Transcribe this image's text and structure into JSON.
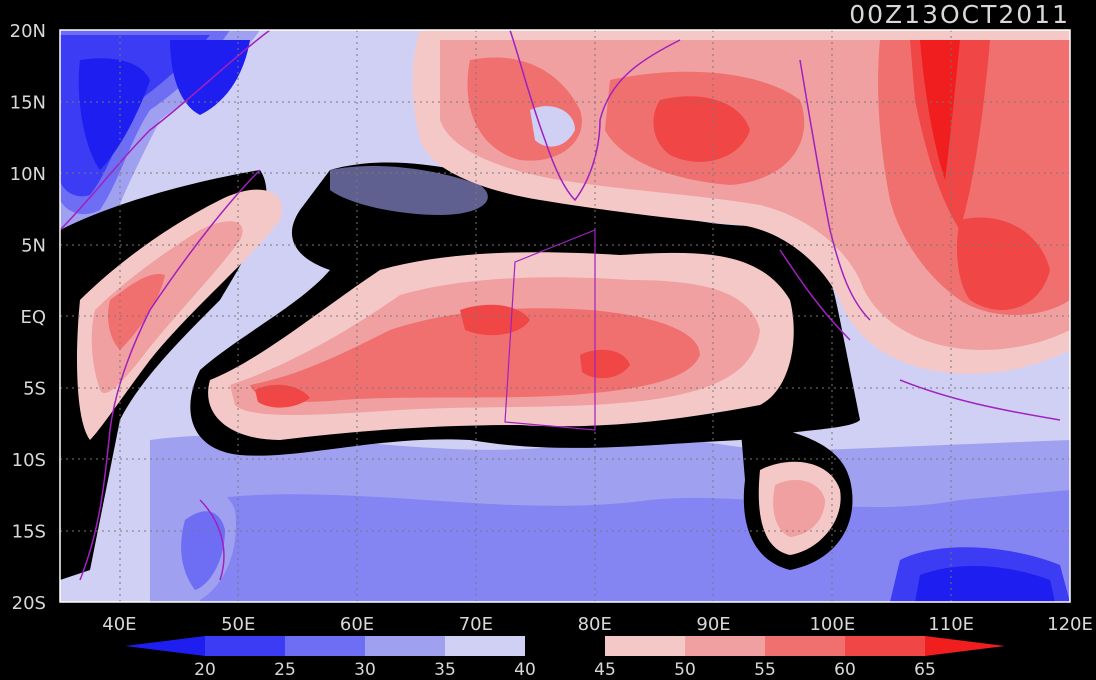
{
  "title": "00Z13OCT2011",
  "x_axis": {
    "tick_labels": [
      "40E",
      "50E",
      "60E",
      "70E",
      "80E",
      "90E",
      "100E",
      "110E",
      "120E"
    ],
    "lon_range": [
      35,
      120
    ]
  },
  "y_axis": {
    "tick_labels": [
      "20N",
      "15N",
      "10N",
      "5N",
      "EQ",
      "5S",
      "10S",
      "15S",
      "20S"
    ],
    "lat_range": [
      -20,
      20
    ]
  },
  "colorbar": {
    "labels": [
      "20",
      "25",
      "30",
      "35",
      "40",
      "45",
      "50",
      "55",
      "60",
      "65"
    ],
    "colors": [
      "#1e1ef0",
      "#3c3cf5",
      "#6e6ef5",
      "#a0a0f0",
      "#d0d0f5",
      "#000000",
      "#f5c8c8",
      "#f0a0a0",
      "#f07070",
      "#f04646",
      "#f01e1e"
    ]
  },
  "colors": {
    "background": "#000000",
    "ocean_default": "#d0d0f5",
    "coastline": "#a020c0",
    "text": "#d8d8d8"
  }
}
